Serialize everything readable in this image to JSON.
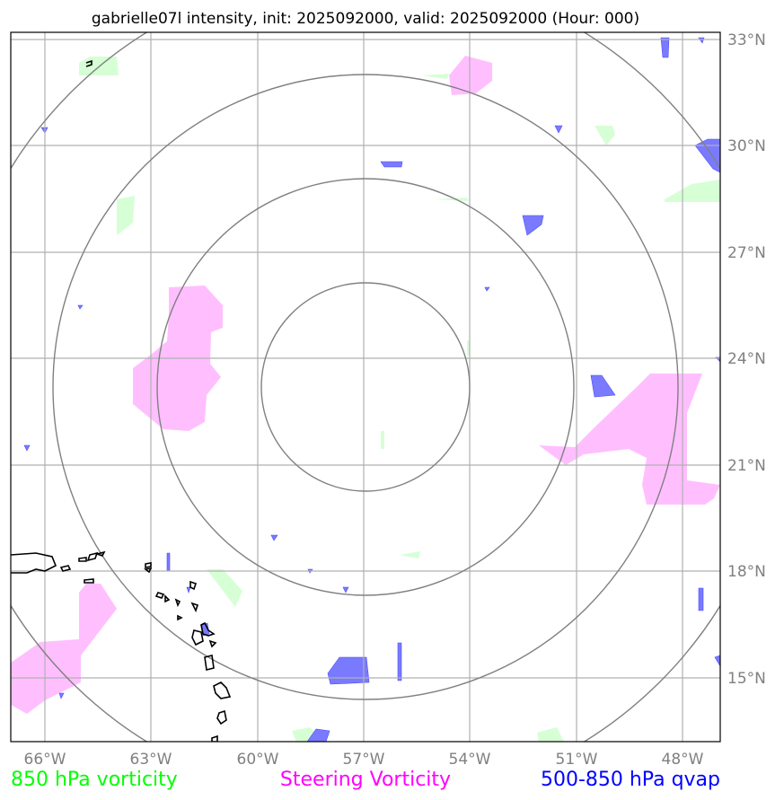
{
  "title": "gabrielle07l intensity, init: 2025092000, valid: 2025092000 (Hour: 000)",
  "lon_labels": [
    "66°W",
    "63°W",
    "60°W",
    "57°W",
    "54°W",
    "51°W",
    "48°W"
  ],
  "lat_labels": [
    "33°N",
    "30°N",
    "27°N",
    "24°N",
    "21°N",
    "18°N",
    "15°N"
  ],
  "legend": [
    {
      "label": "850 hPa vorticity",
      "color": "#00ff00"
    },
    {
      "label": "Steering Vorticity",
      "color": "#ff00ff"
    },
    {
      "label": "500-850 hPa qvap",
      "color": "#0000ff"
    }
  ],
  "colors": {
    "vorticity_850": "#d6ffd6",
    "steering": "#ffbfff",
    "qvap": "#7a7aff",
    "range_ring": "#808080",
    "grid": "#b0b0b0",
    "coast": "#000000"
  }
}
